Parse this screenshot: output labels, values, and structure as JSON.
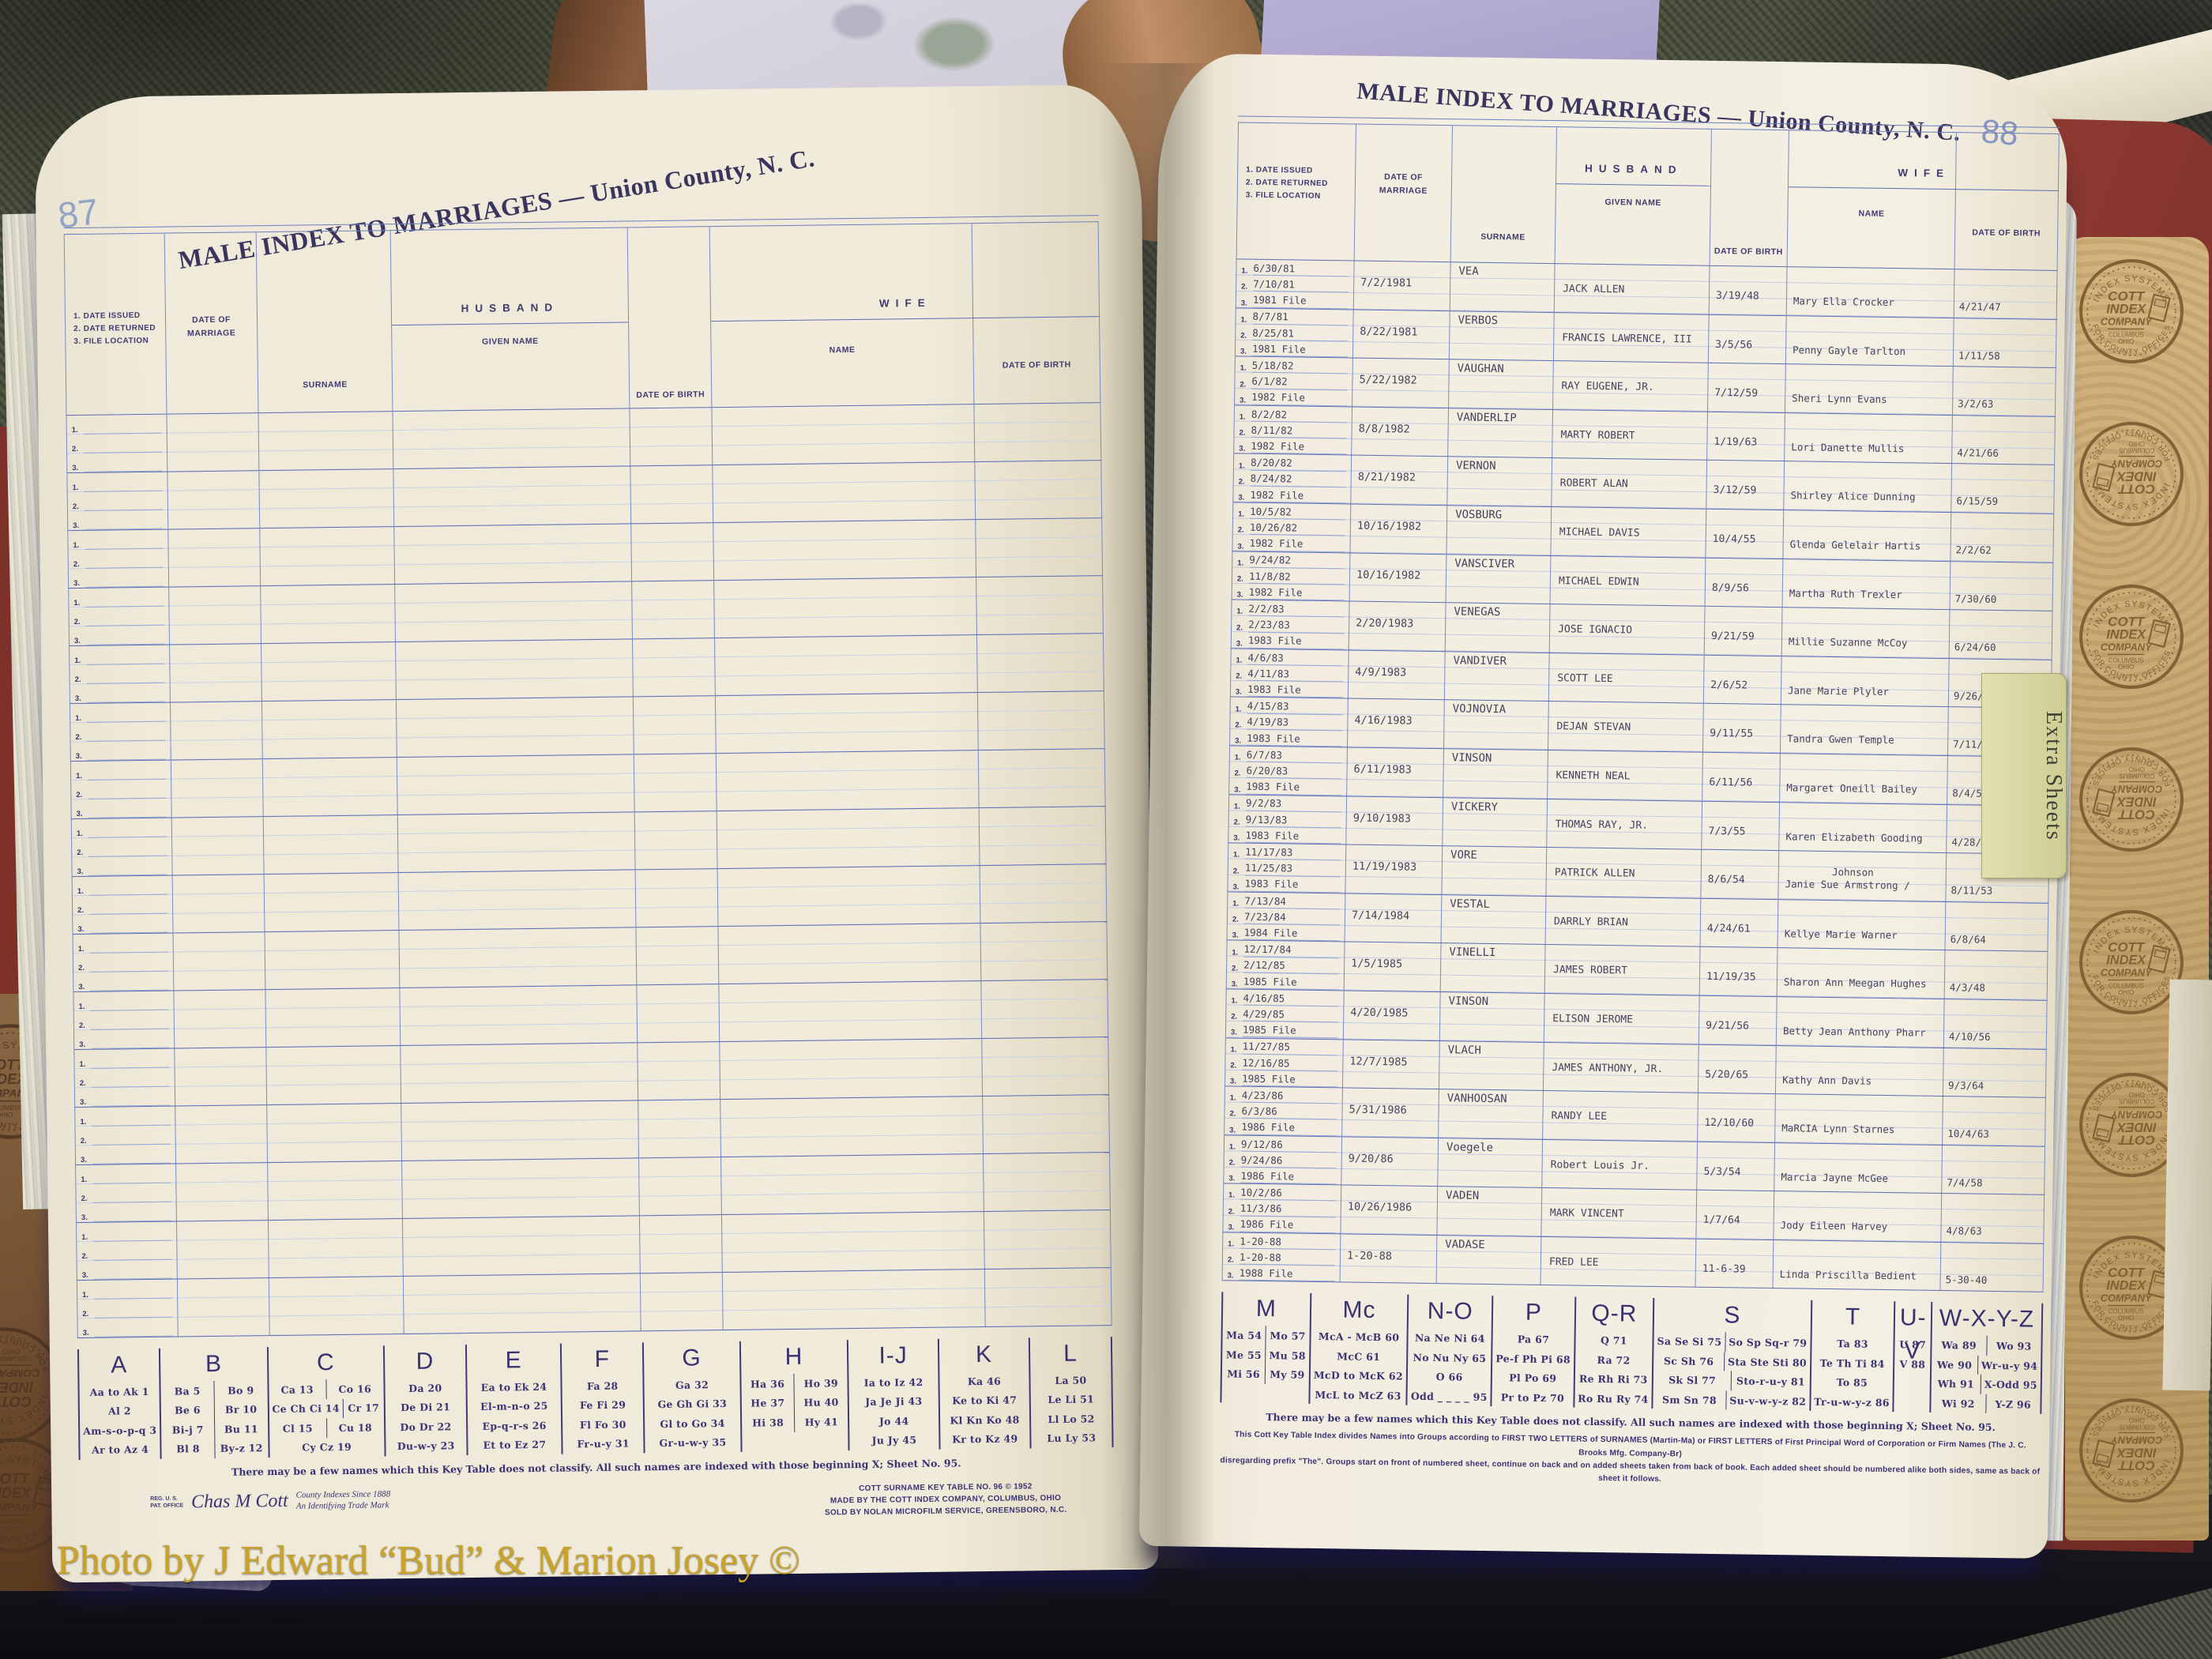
{
  "watermark": "Photo by J Edward “Bud” & Marion Josey ©",
  "extra_sheets_tab": "Extra Sheets",
  "colors": {
    "page_cream": "#efeadb",
    "rule_blue": "#7b8ac2",
    "print_blue": "#3b3474",
    "cover_red": "#8e3a31",
    "leather_tan": "#c8a873",
    "stamp_brown": "#7d5c30",
    "watermark_gold": "#c9a227",
    "tab_green": "#d8d7a0"
  },
  "seal": {
    "arc_top": "INDEX SYSTEMS",
    "arc_bottom": "FOR COUNTY OFFICES",
    "line1": "COTT",
    "line2": "INDEX",
    "line3": "COMPANY",
    "line4": "COLUMBUS",
    "line5": "OHIO"
  },
  "ledger": {
    "title": "MALE INDEX TO MARRIAGES — Union County, N. C.",
    "column_headers": {
      "dates": [
        "1. DATE ISSUED",
        "2. DATE RETURNED",
        "3. FILE LOCATION"
      ],
      "marriage": [
        "DATE OF",
        "MARRIAGE"
      ],
      "surname": "SURNAME",
      "husband": "HUSBAND",
      "given": "GIVEN NAME",
      "dob": "DATE OF BIRTH",
      "wife": "WIFE",
      "name": "NAME",
      "wife_dob": "DATE OF BIRTH"
    },
    "row_labels": [
      "1.",
      "2.",
      "3."
    ],
    "left_page": {
      "page_number": "87",
      "blank_rows": 16,
      "key_table": [
        {
          "letter": "A",
          "rows": [
            [
              "Aa to Ak 1"
            ],
            [
              "Al 2"
            ],
            [
              "Am-s-o-p-q 3"
            ],
            [
              "Ar to Az 4"
            ]
          ]
        },
        {
          "letter": "B",
          "rows": [
            [
              "Ba 5",
              "Bo 9"
            ],
            [
              "Be 6",
              "Br 10"
            ],
            [
              "Bi-j 7",
              "Bu 11"
            ],
            [
              "Bl 8",
              "By-z 12"
            ]
          ]
        },
        {
          "letter": "C",
          "rows": [
            [
              "Ca 13",
              "Co 16"
            ],
            [
              "Ce Ch Ci 14",
              "Cr 17"
            ],
            [
              "Cl 15",
              "Cu 18"
            ],
            [
              "Cy Cz 19"
            ]
          ]
        },
        {
          "letter": "D",
          "rows": [
            [
              "Da 20"
            ],
            [
              "De Di 21"
            ],
            [
              "Do Dr 22"
            ],
            [
              "Du-w-y 23"
            ]
          ]
        },
        {
          "letter": "E",
          "rows": [
            [
              "Ea to Ek 24"
            ],
            [
              "El-m-n-o 25"
            ],
            [
              "Ep-q-r-s 26"
            ],
            [
              "Et to Ez 27"
            ]
          ]
        },
        {
          "letter": "F",
          "rows": [
            [
              "Fa 28"
            ],
            [
              "Fe Fi 29"
            ],
            [
              "Fl Fo 30"
            ],
            [
              "Fr-u-y 31"
            ]
          ]
        },
        {
          "letter": "G",
          "rows": [
            [
              "Ga 32"
            ],
            [
              "Ge Gh Gi 33"
            ],
            [
              "Gl to Go 34"
            ],
            [
              "Gr-u-w-y 35"
            ]
          ]
        },
        {
          "letter": "H",
          "rows": [
            [
              "Ha 36",
              "Ho 39"
            ],
            [
              "He 37",
              "Hu 40"
            ],
            [
              "Hi 38",
              "Hy 41"
            ]
          ]
        },
        {
          "letter": "I-J",
          "rows": [
            [
              "Ia to Iz 42"
            ],
            [
              "Ja Je Ji 43"
            ],
            [
              "Jo 44"
            ],
            [
              "Ju Jy 45"
            ]
          ]
        },
        {
          "letter": "K",
          "rows": [
            [
              "Ka 46"
            ],
            [
              "Ke to Ki 47"
            ],
            [
              "Kl Kn Ko 48"
            ],
            [
              "Kr to Kz 49"
            ]
          ]
        },
        {
          "letter": "L",
          "rows": [
            [
              "La 50"
            ],
            [
              "Le Li 51"
            ],
            [
              "Ll Lo 52"
            ],
            [
              "Lu Ly 53"
            ]
          ]
        }
      ],
      "key_note": "There may be a few names which this Key Table does not classify.  All such names are indexed with those beginning X; Sheet No. 95.",
      "trademark": {
        "reg_line1": "REG. U. S.",
        "reg_line2": "PAT. OFFICE",
        "script": "Chas M Cott",
        "tag_line1": "County Indexes Since 1888",
        "tag_line2": "An Identifying Trade Mark"
      },
      "imprint": [
        "COTT SURNAME KEY TABLE NO. 96 © 1952",
        "MADE BY THE COTT INDEX COMPANY, COLUMBUS, OHIO",
        "SOLD BY NOLAN MICROFILM SERVICE, GREENSBORO, N.C."
      ]
    },
    "right_page": {
      "page_number": "88",
      "entries": [
        {
          "issued": "6/30/81",
          "returned": "7/10/81",
          "file": "1981 File",
          "married": "7/2/1981",
          "surname": "VEA",
          "given": "JACK ALLEN",
          "dob": "3/19/48",
          "wife": "Mary Ella Crocker",
          "wife_dob": "4/21/47"
        },
        {
          "issued": "8/7/81",
          "returned": "8/25/81",
          "file": "1981 File",
          "married": "8/22/1981",
          "surname": "VERBOS",
          "given": "FRANCIS LAWRENCE, III",
          "dob": "3/5/56",
          "wife": "Penny Gayle Tarlton",
          "wife_dob": "1/11/58"
        },
        {
          "issued": "5/18/82",
          "returned": "6/1/82",
          "file": "1982 File",
          "married": "5/22/1982",
          "surname": "VAUGHAN",
          "given": "RAY EUGENE, JR.",
          "dob": "7/12/59",
          "wife": "Sheri Lynn Evans",
          "wife_dob": "3/2/63"
        },
        {
          "issued": "8/2/82",
          "returned": "8/11/82",
          "file": "1982 File",
          "married": "8/8/1982",
          "surname": "VANDERLIP",
          "given": "MARTY ROBERT",
          "dob": "1/19/63",
          "wife": "Lori Danette Mullis",
          "wife_dob": "4/21/66"
        },
        {
          "issued": "8/20/82",
          "returned": "8/24/82",
          "file": "1982 File",
          "married": "8/21/1982",
          "surname": "VERNON",
          "given": "ROBERT ALAN",
          "dob": "3/12/59",
          "wife": "Shirley Alice Dunning",
          "wife_dob": "6/15/59"
        },
        {
          "issued": "10/5/82",
          "returned": "10/26/82",
          "file": "1982 File",
          "married": "10/16/1982",
          "surname": "VOSBURG",
          "given": "MICHAEL DAVIS",
          "dob": "10/4/55",
          "wife": "Glenda Gelelair Hartis",
          "wife_dob": "2/2/62"
        },
        {
          "issued": "9/24/82",
          "returned": "11/8/82",
          "file": "1982 File",
          "married": "10/16/1982",
          "surname": "VANSCIVER",
          "given": "MICHAEL EDWIN",
          "dob": "8/9/56",
          "wife": "Martha Ruth Trexler",
          "wife_dob": "7/30/60"
        },
        {
          "issued": "2/2/83",
          "returned": "2/23/83",
          "file": "1983 File",
          "married": "2/20/1983",
          "surname": "VENEGAS",
          "given": "JOSE IGNACIO",
          "dob": "9/21/59",
          "wife": "Millie Suzanne McCoy",
          "wife_dob": "6/24/60"
        },
        {
          "issued": "4/6/83",
          "returned": "4/11/83",
          "file": "1983 File",
          "married": "4/9/1983",
          "surname": "VANDIVER",
          "given": "SCOTT LEE",
          "dob": "2/6/52",
          "wife": "Jane Marie Plyler",
          "wife_dob": "9/26/56"
        },
        {
          "issued": "4/15/83",
          "returned": "4/19/83",
          "file": "1983 File",
          "married": "4/16/1983",
          "surname": "VOJNOVIA",
          "given": "DEJAN STEVAN",
          "dob": "9/11/55",
          "wife": "Tandra Gwen Temple",
          "wife_dob": "7/11/59"
        },
        {
          "issued": "6/7/83",
          "returned": "6/20/83",
          "file": "1983 File",
          "married": "6/11/1983",
          "surname": "VINSON",
          "given": "KENNETH NEAL",
          "dob": "6/11/56",
          "wife": "Margaret Oneill Bailey",
          "wife_dob": "8/4/58"
        },
        {
          "issued": "9/2/83",
          "returned": "9/13/83",
          "file": "1983 File",
          "married": "9/10/1983",
          "surname": "VICKERY",
          "given": "THOMAS RAY, JR.",
          "dob": "7/3/55",
          "wife": "Karen Elizabeth Gooding",
          "wife_dob": "4/28/58"
        },
        {
          "issued": "11/17/83",
          "returned": "11/25/83",
          "file": "1983 File",
          "married": "11/19/1983",
          "surname": "VORE",
          "given": "PATRICK ALLEN",
          "dob": "8/6/54",
          "wife_top": "Johnson",
          "wife": "Janie Sue Armstrong /",
          "wife_dob": "8/11/53"
        },
        {
          "issued": "7/13/84",
          "returned": "7/23/84",
          "file": "1984 File",
          "married": "7/14/1984",
          "surname": "VESTAL",
          "given": "DARRLY BRIAN",
          "dob": "4/24/61",
          "wife": "Kellye Marie Warner",
          "wife_dob": "6/8/64"
        },
        {
          "issued": "12/17/84",
          "returned": "2/12/85",
          "file": "1985 File",
          "married": "1/5/1985",
          "surname": "VINELLI",
          "given": "JAMES ROBERT",
          "dob": "11/19/35",
          "wife": "Sharon Ann Meegan Hughes",
          "wife_dob": "4/3/48"
        },
        {
          "issued": "4/16/85",
          "returned": "4/29/85",
          "file": "1985 File",
          "married": "4/20/1985",
          "surname": "VINSON",
          "given": "ELISON JEROME",
          "dob": "9/21/56",
          "wife": "Betty Jean Anthony Pharr",
          "wife_dob": "4/10/56"
        },
        {
          "issued": "11/27/85",
          "returned": "12/16/85",
          "file": "1985 File",
          "married": "12/7/1985",
          "surname": "VLACH",
          "given": "JAMES ANTHONY, JR.",
          "dob": "5/20/65",
          "wife": "Kathy Ann Davis",
          "wife_dob": "9/3/64"
        },
        {
          "issued": "4/23/86",
          "returned": "6/3/86",
          "file": "1986 File",
          "married": "5/31/1986",
          "surname": "VANHOOSAN",
          "given": "RANDY LEE",
          "dob": "12/10/60",
          "wife": "MaRCIA Lynn Starnes",
          "wife_dob": "10/4/63"
        },
        {
          "issued": "9/12/86",
          "returned": "9/24/86",
          "file": "1986 File",
          "married": "9/20/86",
          "surname": "Voegele",
          "given": "Robert Louis Jr.",
          "dob": "5/3/54",
          "wife": "Marcia Jayne McGee",
          "wife_dob": "7/4/58"
        },
        {
          "issued": "10/2/86",
          "returned": "11/3/86",
          "file": "1986 File",
          "married": "10/26/1986",
          "surname": "VADEN",
          "given": "MARK VINCENT",
          "dob": "1/7/64",
          "wife": "Jody Eileen Harvey",
          "wife_dob": "4/8/63"
        },
        {
          "issued": "1-20-88",
          "returned": "1-20-88",
          "file": "1988 File",
          "married": "1-20-88",
          "surname": "VADASE",
          "given": "FRED LEE",
          "dob": "11-6-39",
          "wife": "Linda Priscilla Bedient",
          "wife_dob": "5-30-40"
        }
      ],
      "key_table": [
        {
          "letter": "M",
          "rows": [
            [
              "Ma 54",
              "Mo 57"
            ],
            [
              "Me 55",
              "Mu 58"
            ],
            [
              "Mi 56",
              "My 59"
            ]
          ]
        },
        {
          "letter": "Mc",
          "rows": [
            [
              "McA - McB 60"
            ],
            [
              "McC 61"
            ],
            [
              "McD to McK 62"
            ],
            [
              "McL to McZ 63"
            ]
          ]
        },
        {
          "letter": "N-O",
          "rows": [
            [
              "Na Ne Ni 64"
            ],
            [
              "No Nu Ny 65"
            ],
            [
              "O 66"
            ],
            [
              "Odd _ _ _ _ 95"
            ]
          ]
        },
        {
          "letter": "P",
          "rows": [
            [
              "Pa 67"
            ],
            [
              "Pe-f Ph Pi 68"
            ],
            [
              "Pl Po 69"
            ],
            [
              "Pr to Pz 70"
            ]
          ]
        },
        {
          "letter": "Q-R",
          "rows": [
            [
              "Q 71"
            ],
            [
              "Ra 72"
            ],
            [
              "Re Rh Ri 73"
            ],
            [
              "Ro Ru Ry 74"
            ]
          ]
        },
        {
          "letter": "S",
          "rows": [
            [
              "Sa Se Si 75",
              "So Sp Sq-r 79"
            ],
            [
              "Sc Sh 76",
              "Sta Ste Sti 80"
            ],
            [
              "Sk Sl 77",
              "Sto-r-u-y 81"
            ],
            [
              "Sm Sn 78",
              "Su-v-w-y-z 82"
            ]
          ]
        },
        {
          "letter": "T",
          "rows": [
            [
              "Ta 83"
            ],
            [
              "Te Th Ti 84"
            ],
            [
              "To 85"
            ],
            [
              "Tr-u-w-y-z 86"
            ]
          ]
        },
        {
          "letter": "U-V",
          "rows": [
            [
              "U 87"
            ],
            [
              "V 88"
            ]
          ]
        },
        {
          "letter": "W-X-Y-Z",
          "rows": [
            [
              "Wa 89",
              "Wo 93"
            ],
            [
              "We 90",
              "Wr-u-y 94"
            ],
            [
              "Wh 91",
              "X-Odd 95"
            ],
            [
              "Wi 92",
              "Y-Z 96"
            ]
          ]
        }
      ],
      "key_note": "There may be a few names which this Key Table does not classify.  All such names are indexed with those beginning X; Sheet No. 95.",
      "footnote_lines": [
        "This Cott Key Table Index divides Names into Groups according to FIRST TWO LETTERS of SURNAMES (Martin-Ma) or FIRST LETTERS of First Principal Word of Corporation or Firm Names (The J. C. Brooks Mfg. Company-Br)",
        "disregarding prefix \"The\". Groups start on front of numbered sheet, continue on back and on added sheets taken from back of book. Each added sheet should be numbered alike both sides, same as back of sheet it follows."
      ]
    }
  }
}
